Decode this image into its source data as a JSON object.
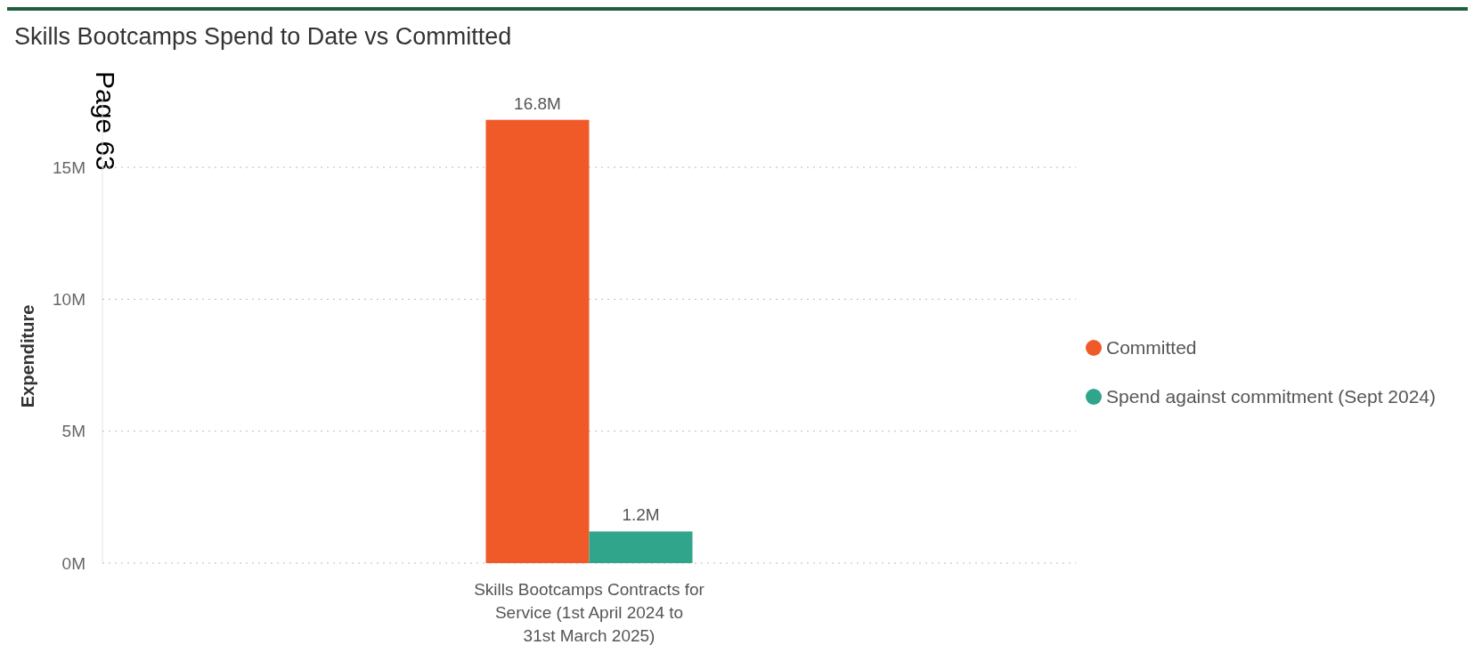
{
  "chart_data": {
    "type": "bar",
    "title": "Skills Bootcamps Spend to Date vs Committed",
    "ylabel": "Expenditure",
    "annotations": [
      "Page 63"
    ],
    "categories": [
      "Skills Bootcamps Contracts for Service (1st April 2024 to 31st March 2025)"
    ],
    "series": [
      {
        "name": "Committed",
        "color": "#f05a28",
        "values": [
          16.8
        ],
        "value_labels": [
          "16.8M"
        ]
      },
      {
        "name": "Spend against commitment (Sept 2024)",
        "color": "#30a58c",
        "values": [
          1.2
        ],
        "value_labels": [
          "1.2M"
        ]
      }
    ],
    "ylim": [
      0,
      17.7
    ],
    "yticks": [
      {
        "value": 0,
        "label": "0M"
      },
      {
        "value": 5,
        "label": "5M"
      },
      {
        "value": 10,
        "label": "10M"
      },
      {
        "value": 15,
        "label": "15M"
      }
    ],
    "grid": "y",
    "legend": "right"
  }
}
